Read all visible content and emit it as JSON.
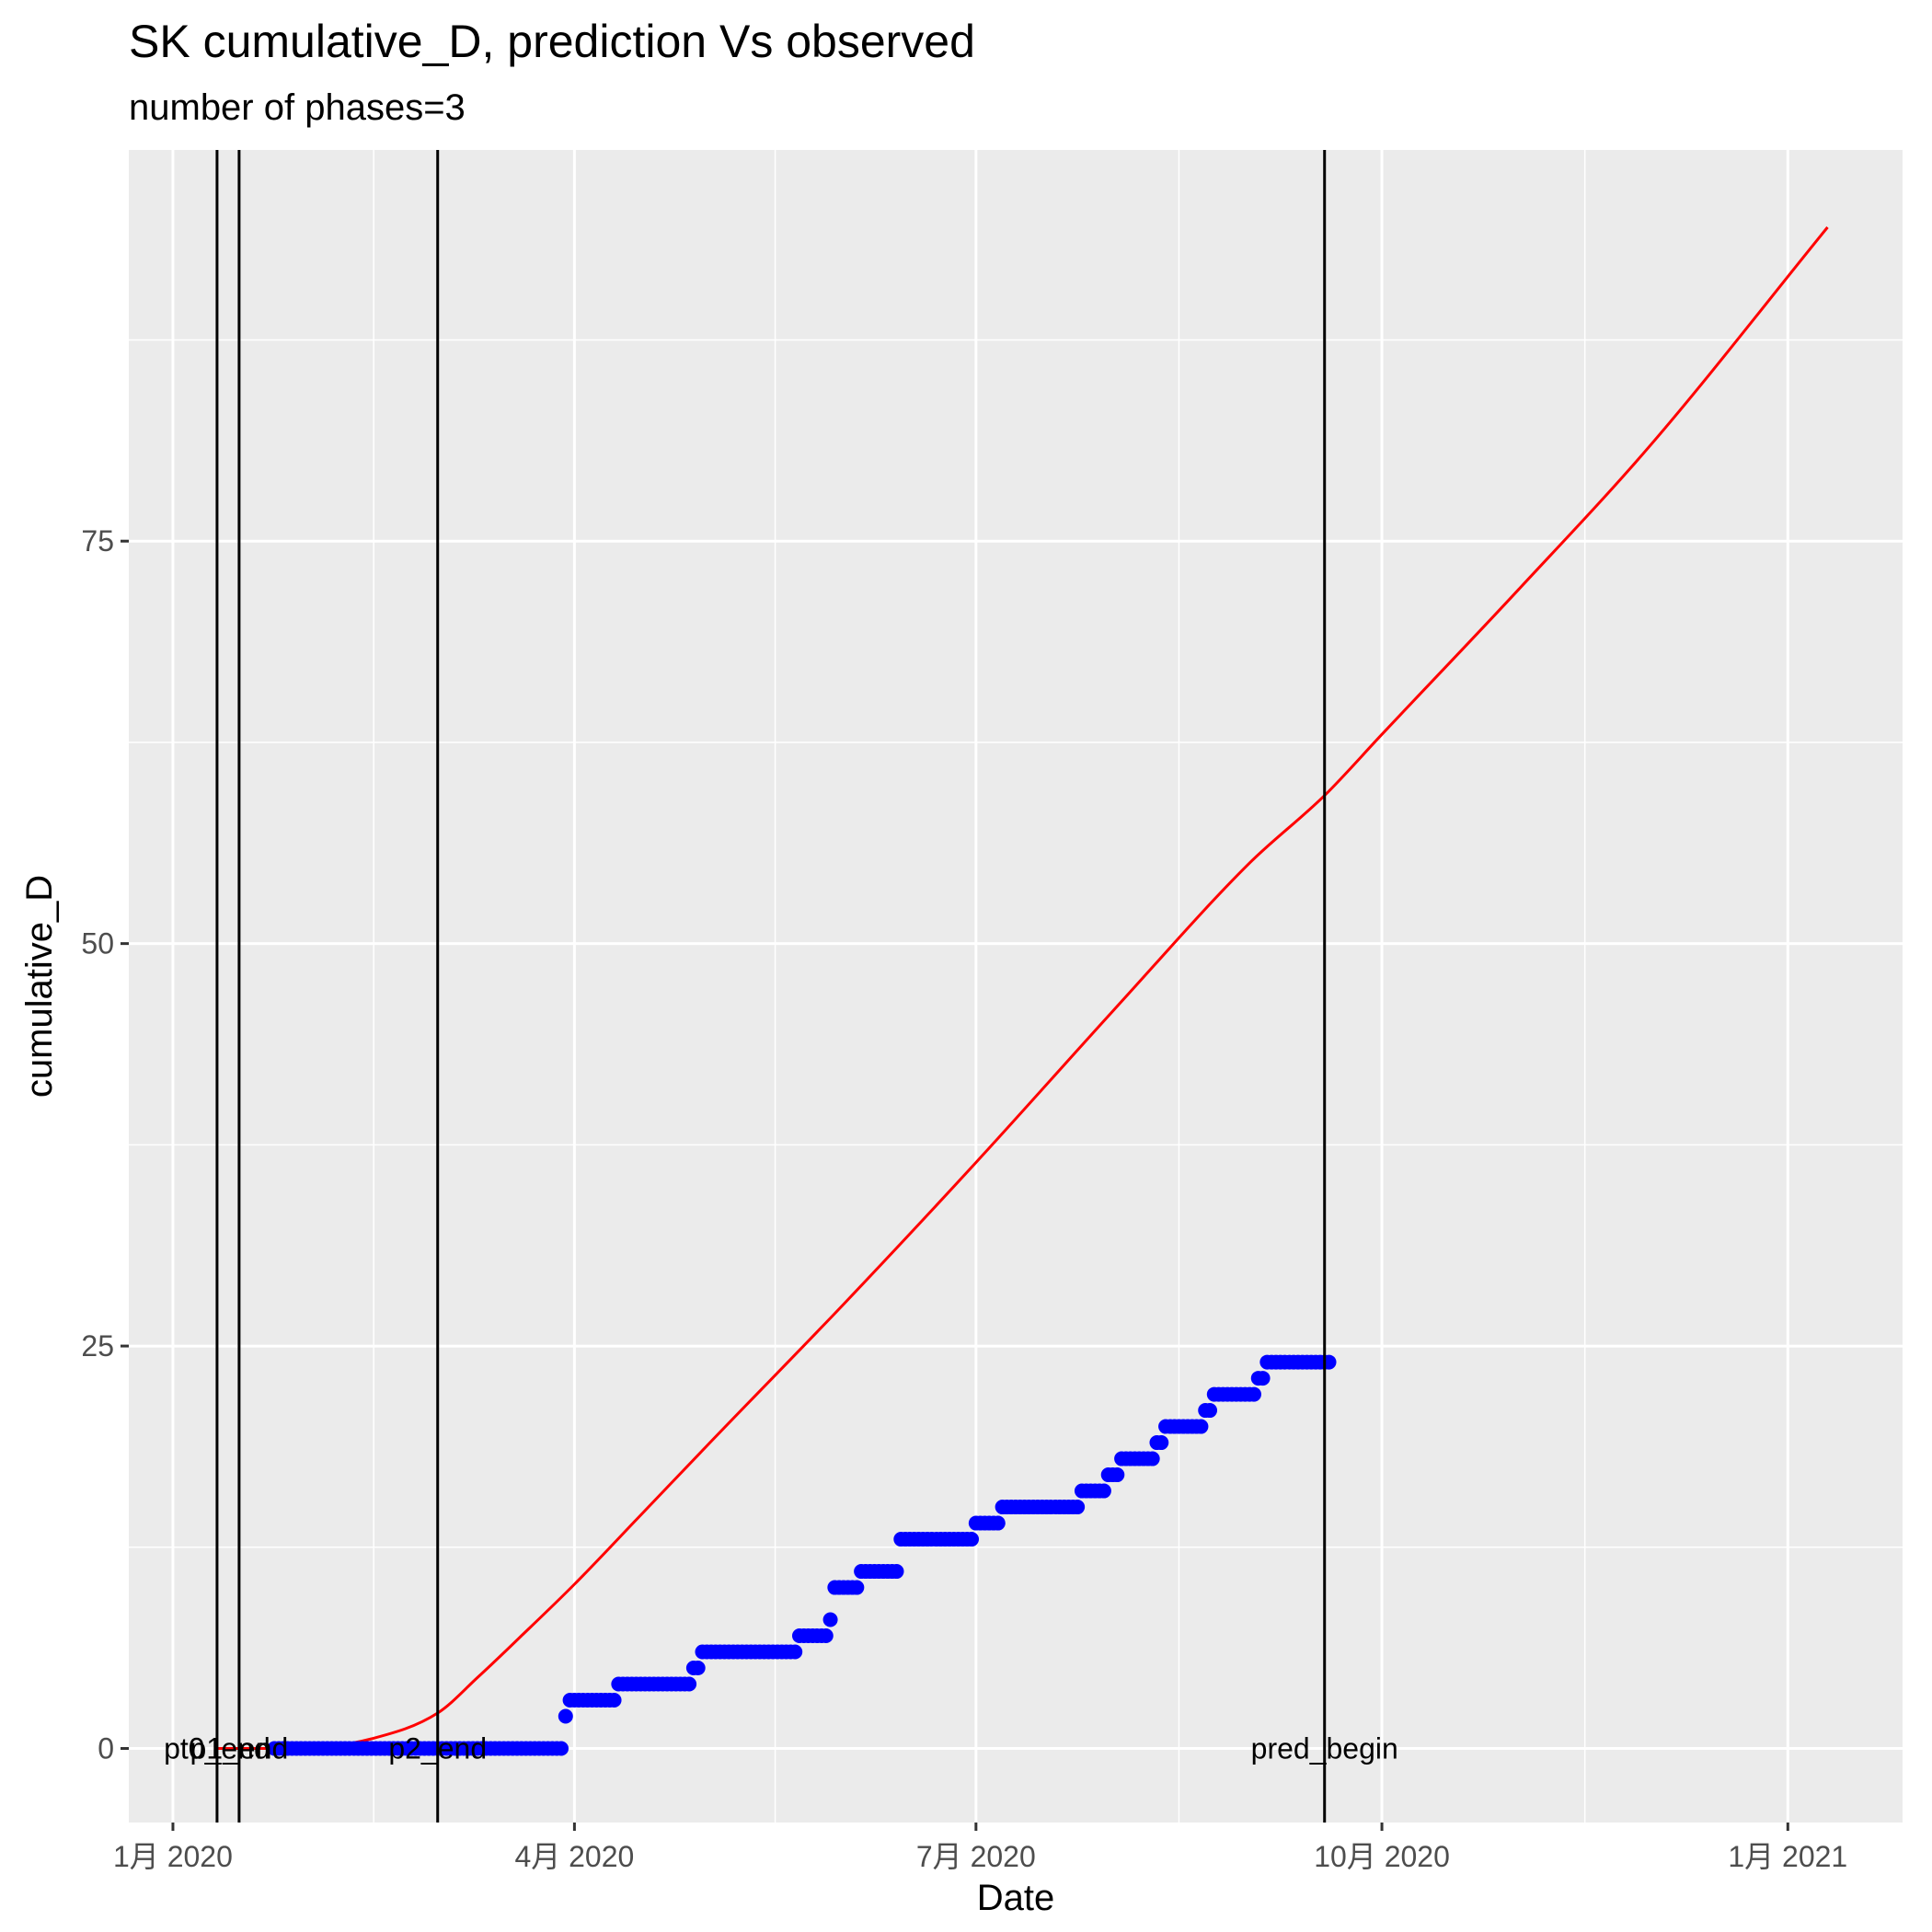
{
  "chart_data": {
    "type": "line",
    "title": "SK cumulative_D,  prediction Vs observed",
    "subtitle": "number of phases=3",
    "xlabel": "Date",
    "ylabel": "cumulative_D",
    "x_axis": {
      "kind": "date",
      "range": [
        "2019-12-22",
        "2021-01-27"
      ],
      "ticks": [
        {
          "date": "2020-01-01",
          "label": "1月 2020"
        },
        {
          "date": "2020-04-01",
          "label": "4月 2020"
        },
        {
          "date": "2020-07-01",
          "label": "7月 2020"
        },
        {
          "date": "2020-10-01",
          "label": "10月 2020"
        },
        {
          "date": "2021-01-01",
          "label": "1月 2021"
        }
      ]
    },
    "y_axis": {
      "range": [
        -4.6,
        99.3
      ],
      "ticks": [
        0,
        25,
        50,
        75
      ]
    },
    "grid": true,
    "legend": "none",
    "vertical_lines": [
      {
        "date": "2020-01-11",
        "label": "pt0_end"
      },
      {
        "date": "2020-01-16",
        "label": "p1_end"
      },
      {
        "date": "2020-03-01",
        "label": "p2_end"
      },
      {
        "date": "2020-09-18",
        "label": "pred_begin"
      }
    ],
    "series": [
      {
        "role": "predicted",
        "color": "#ff0000",
        "style": "line",
        "points": [
          [
            "2020-01-11",
            0.0
          ],
          [
            "2020-01-20",
            0.0
          ],
          [
            "2020-02-01",
            0.05
          ],
          [
            "2020-02-15",
            0.6
          ],
          [
            "2020-03-01",
            2.2
          ],
          [
            "2020-03-10",
            4.4
          ],
          [
            "2020-03-20",
            7.0
          ],
          [
            "2020-04-01",
            10.2
          ],
          [
            "2020-04-15",
            14.2
          ],
          [
            "2020-05-01",
            18.8
          ],
          [
            "2020-06-01",
            27.6
          ],
          [
            "2020-07-01",
            36.4
          ],
          [
            "2020-08-01",
            45.8
          ],
          [
            "2020-09-01",
            55.0
          ],
          [
            "2020-09-18",
            59.2
          ],
          [
            "2020-10-01",
            63.0
          ],
          [
            "2020-11-01",
            72.0
          ],
          [
            "2020-12-01",
            81.0
          ],
          [
            "2021-01-10",
            94.5
          ]
        ]
      },
      {
        "role": "observed",
        "color": "#0000ff",
        "style": "points",
        "steps": [
          [
            "2020-01-24",
            "2020-03-29",
            0
          ],
          [
            "2020-03-30",
            "2020-03-30",
            2
          ],
          [
            "2020-03-31",
            "2020-04-10",
            3
          ],
          [
            "2020-04-11",
            "2020-04-27",
            4
          ],
          [
            "2020-04-28",
            "2020-04-29",
            5
          ],
          [
            "2020-04-30",
            "2020-05-21",
            6
          ],
          [
            "2020-05-22",
            "2020-05-28",
            7
          ],
          [
            "2020-05-29",
            "2020-05-29",
            8
          ],
          [
            "2020-05-30",
            "2020-06-04",
            10
          ],
          [
            "2020-06-05",
            "2020-06-13",
            11
          ],
          [
            "2020-06-14",
            "2020-06-30",
            13
          ],
          [
            "2020-07-01",
            "2020-07-06",
            14
          ],
          [
            "2020-07-07",
            "2020-07-24",
            15
          ],
          [
            "2020-07-25",
            "2020-07-30",
            16
          ],
          [
            "2020-07-31",
            "2020-08-02",
            17
          ],
          [
            "2020-08-03",
            "2020-08-10",
            18
          ],
          [
            "2020-08-11",
            "2020-08-12",
            19
          ],
          [
            "2020-08-13",
            "2020-08-21",
            20
          ],
          [
            "2020-08-22",
            "2020-08-23",
            21
          ],
          [
            "2020-08-24",
            "2020-09-02",
            22
          ],
          [
            "2020-09-03",
            "2020-09-04",
            23
          ],
          [
            "2020-09-05",
            "2020-09-19",
            24
          ]
        ]
      }
    ]
  }
}
